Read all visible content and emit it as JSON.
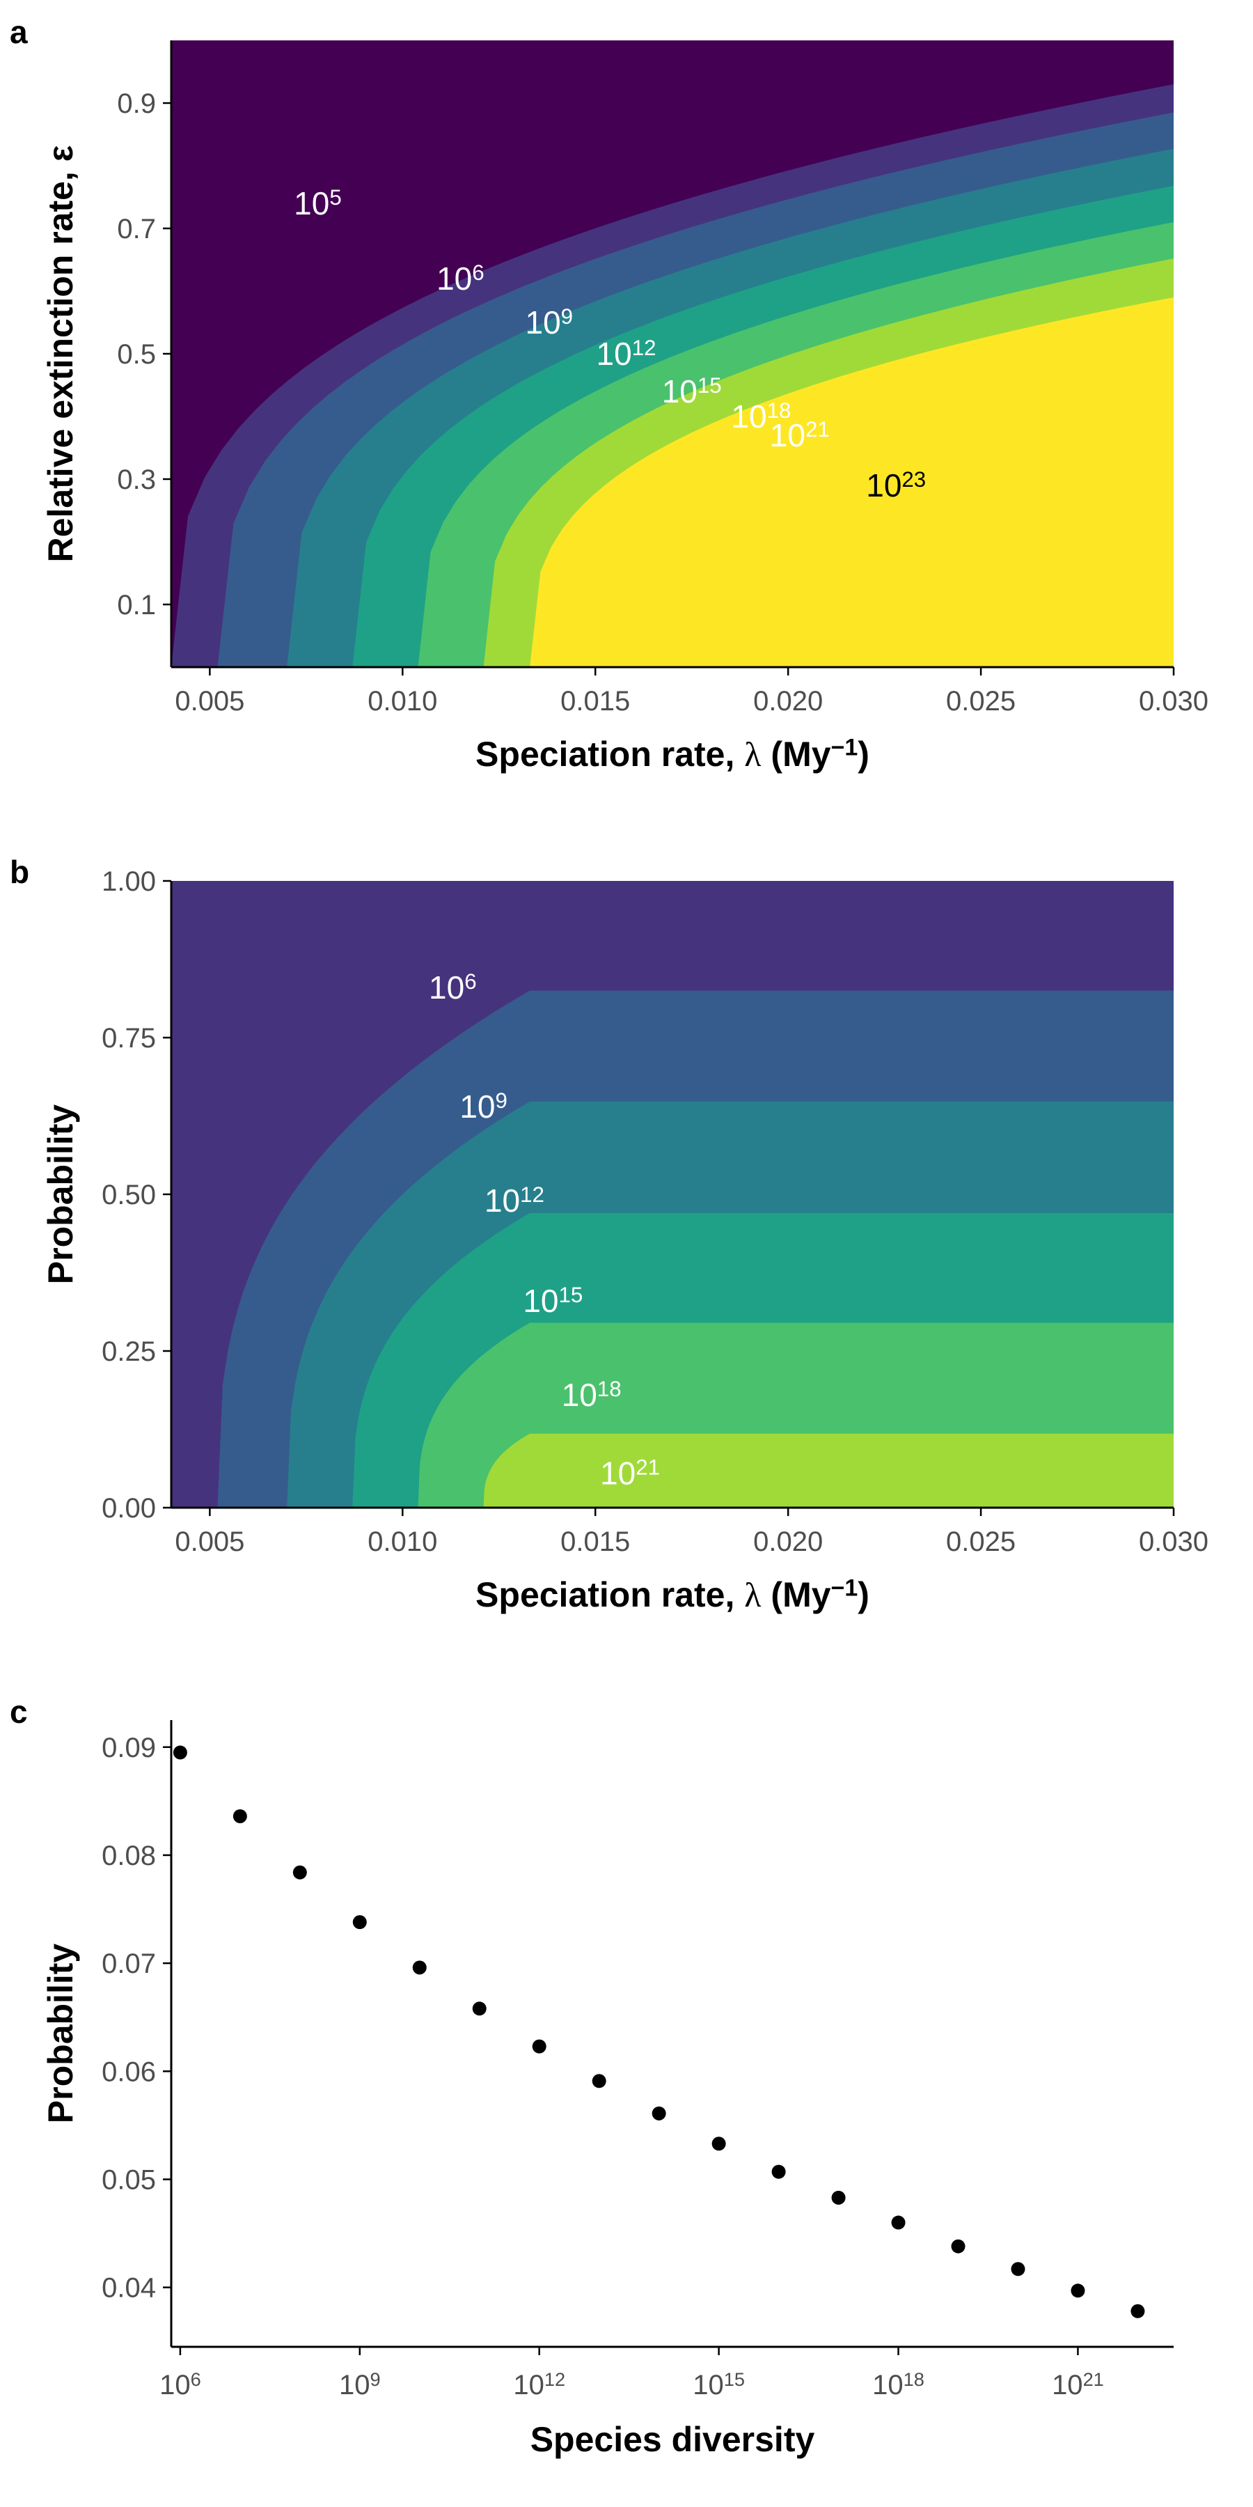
{
  "colors": {
    "viridis": [
      "#440154",
      "#46337e",
      "#365c8d",
      "#277f8e",
      "#1fa187",
      "#4ac16d",
      "#a0da39",
      "#fde725"
    ],
    "axis": "#000000",
    "tick_text": "#4d4d4d",
    "point": "#000000"
  },
  "chart_data": [
    {
      "panel_label": "a",
      "type": "heatmap",
      "xlabel_main": "Speciation rate, ",
      "xlabel_symbol": "λ",
      "xlabel_unit_open": " (My",
      "xlabel_unit_exp": "−1",
      "xlabel_unit_close": ")",
      "ylabel": "Relative extinction rate, ε",
      "xlim": [
        0.004,
        0.03
      ],
      "ylim": [
        0,
        1
      ],
      "xticks": [
        {
          "value": 0.005,
          "label": "0.005"
        },
        {
          "value": 0.01,
          "label": "0.010"
        },
        {
          "value": 0.015,
          "label": "0.015"
        },
        {
          "value": 0.02,
          "label": "0.020"
        },
        {
          "value": 0.025,
          "label": "0.025"
        },
        {
          "value": 0.03,
          "label": "0.030"
        }
      ],
      "yticks": [
        {
          "value": 0.1,
          "label": "0.1"
        },
        {
          "value": 0.3,
          "label": "0.3"
        },
        {
          "value": 0.5,
          "label": "0.5"
        },
        {
          "value": 0.7,
          "label": "0.7"
        },
        {
          "value": 0.9,
          "label": "0.9"
        }
      ],
      "boundaries": [
        {
          "lambda_at_eps0": 0.004,
          "eps_at_max": 0.93
        },
        {
          "lambda_at_eps0": 0.0052,
          "eps_at_max": 0.885
        },
        {
          "lambda_at_eps0": 0.007,
          "eps_at_max": 0.827
        },
        {
          "lambda_at_eps0": 0.0087,
          "eps_at_max": 0.768
        },
        {
          "lambda_at_eps0": 0.0104,
          "eps_at_max": 0.71
        },
        {
          "lambda_at_eps0": 0.0121,
          "eps_at_max": 0.652
        },
        {
          "lambda_at_eps0": 0.0133,
          "eps_at_max": 0.59
        }
      ],
      "contour_labels": [
        {
          "base": "10",
          "exp": "5",
          "x": 0.0078,
          "y": 0.74,
          "color": "#ffffff"
        },
        {
          "base": "10",
          "exp": "6",
          "x": 0.0115,
          "y": 0.62,
          "color": "#ffffff"
        },
        {
          "base": "10",
          "exp": "9",
          "x": 0.0138,
          "y": 0.55,
          "color": "#ffffff"
        },
        {
          "base": "10",
          "exp": "12",
          "x": 0.0158,
          "y": 0.5,
          "color": "#ffffff"
        },
        {
          "base": "10",
          "exp": "15",
          "x": 0.0175,
          "y": 0.44,
          "color": "#ffffff"
        },
        {
          "base": "10",
          "exp": "18",
          "x": 0.0193,
          "y": 0.4,
          "color": "#ffffff"
        },
        {
          "base": "10",
          "exp": "21",
          "x": 0.0203,
          "y": 0.37,
          "color": "#ffffff"
        },
        {
          "base": "10",
          "exp": "23",
          "x": 0.0228,
          "y": 0.29,
          "color": "#000000"
        }
      ]
    },
    {
      "panel_label": "b",
      "type": "heatmap",
      "xlabel_main": "Speciation rate, ",
      "xlabel_symbol": "λ",
      "xlabel_unit_open": " (My",
      "xlabel_unit_exp": "−1",
      "xlabel_unit_close": ")",
      "ylabel": "Probability",
      "xlim": [
        0.004,
        0.03
      ],
      "ylim": [
        0,
        1
      ],
      "xticks": [
        {
          "value": 0.005,
          "label": "0.005"
        },
        {
          "value": 0.01,
          "label": "0.010"
        },
        {
          "value": 0.015,
          "label": "0.015"
        },
        {
          "value": 0.02,
          "label": "0.020"
        },
        {
          "value": 0.025,
          "label": "0.025"
        },
        {
          "value": 0.03,
          "label": "0.030"
        }
      ],
      "yticks": [
        {
          "value": 0,
          "label": "0.00"
        },
        {
          "value": 0.25,
          "label": "0.25"
        },
        {
          "value": 0.5,
          "label": "0.50"
        },
        {
          "value": 0.75,
          "label": "0.75"
        },
        {
          "value": 1,
          "label": "1.00"
        }
      ],
      "knee_x": 0.0133,
      "boundaries": [
        {
          "lambda_at_p0": 0.0052,
          "p_plateau": 0.825
        },
        {
          "lambda_at_p0": 0.007,
          "p_plateau": 0.648
        },
        {
          "lambda_at_p0": 0.0087,
          "p_plateau": 0.47
        },
        {
          "lambda_at_p0": 0.0104,
          "p_plateau": 0.295
        },
        {
          "lambda_at_p0": 0.0121,
          "p_plateau": 0.118
        }
      ],
      "contour_labels": [
        {
          "base": "10",
          "exp": "6",
          "x": 0.0113,
          "y": 0.83,
          "color": "#ffffff"
        },
        {
          "base": "10",
          "exp": "9",
          "x": 0.0121,
          "y": 0.64,
          "color": "#ffffff"
        },
        {
          "base": "10",
          "exp": "12",
          "x": 0.0129,
          "y": 0.49,
          "color": "#ffffff"
        },
        {
          "base": "10",
          "exp": "15",
          "x": 0.0139,
          "y": 0.33,
          "color": "#ffffff"
        },
        {
          "base": "10",
          "exp": "18",
          "x": 0.0149,
          "y": 0.18,
          "color": "#ffffff"
        },
        {
          "base": "10",
          "exp": "21",
          "x": 0.0159,
          "y": 0.055,
          "color": "#ffffff"
        }
      ]
    },
    {
      "panel_label": "c",
      "type": "scatter",
      "xlabel": "Species diversity",
      "ylabel": "Probability",
      "x_scale": "log10",
      "xlim": [
        5.85,
        22.6
      ],
      "ylim": [
        0.0345,
        0.0925
      ],
      "xticks": [
        {
          "value": 6,
          "base": "10",
          "exp": "6"
        },
        {
          "value": 9,
          "base": "10",
          "exp": "9"
        },
        {
          "value": 12,
          "base": "10",
          "exp": "12"
        },
        {
          "value": 15,
          "base": "10",
          "exp": "15"
        },
        {
          "value": 18,
          "base": "10",
          "exp": "18"
        },
        {
          "value": 21,
          "base": "10",
          "exp": "21"
        }
      ],
      "yticks": [
        {
          "value": 0.04,
          "label": "0.04"
        },
        {
          "value": 0.05,
          "label": "0.05"
        },
        {
          "value": 0.06,
          "label": "0.06"
        },
        {
          "value": 0.07,
          "label": "0.07"
        },
        {
          "value": 0.08,
          "label": "0.08"
        },
        {
          "value": 0.09,
          "label": "0.09"
        }
      ],
      "points": [
        {
          "x": 6.0,
          "y": 0.0895
        },
        {
          "x": 7.0,
          "y": 0.0836
        },
        {
          "x": 8.0,
          "y": 0.0784
        },
        {
          "x": 9.0,
          "y": 0.0738
        },
        {
          "x": 10.0,
          "y": 0.0696
        },
        {
          "x": 11.0,
          "y": 0.0658
        },
        {
          "x": 12.0,
          "y": 0.0623
        },
        {
          "x": 13.0,
          "y": 0.0591
        },
        {
          "x": 14.0,
          "y": 0.0561
        },
        {
          "x": 15.0,
          "y": 0.0533
        },
        {
          "x": 16.0,
          "y": 0.0507
        },
        {
          "x": 17.0,
          "y": 0.0483
        },
        {
          "x": 18.0,
          "y": 0.046
        },
        {
          "x": 19.0,
          "y": 0.0438
        },
        {
          "x": 20.0,
          "y": 0.0417
        },
        {
          "x": 21.0,
          "y": 0.0397
        },
        {
          "x": 22.0,
          "y": 0.0378
        }
      ]
    }
  ]
}
